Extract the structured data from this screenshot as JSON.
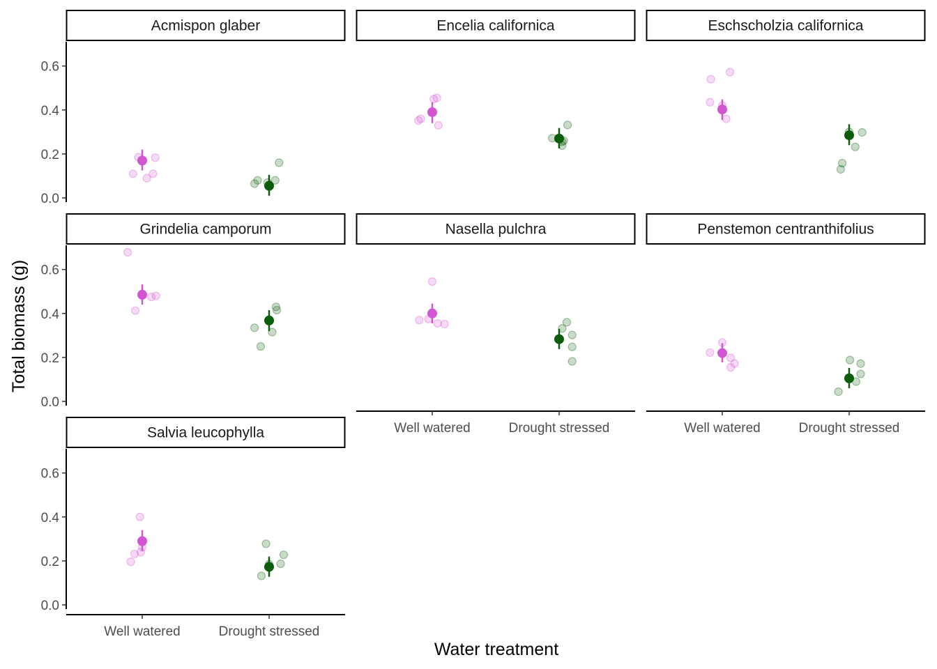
{
  "chart_data": {
    "type": "scatter",
    "xlabel": "Water treatment",
    "ylabel": "Total biomass (g)",
    "categories": [
      "Well watered",
      "Drought stressed"
    ],
    "ylim": [
      -0.03,
      0.71
    ],
    "y_ticks": [
      "0.0",
      "0.2",
      "0.4",
      "0.6"
    ],
    "y_tick_values": [
      0.0,
      0.2,
      0.4,
      0.6
    ],
    "grid": false,
    "legend": "none",
    "colors": {
      "Well watered": "#d255d2",
      "Drought stressed": "#0b5d0b"
    },
    "panels": [
      {
        "title": "Acmispon glaber",
        "groups": [
          {
            "category": "Well watered",
            "mean": 0.17,
            "error": [
              0.125,
              0.22
            ],
            "points": [
              [
                -0.12,
                0.11
              ],
              [
                -0.05,
                0.185
              ],
              [
                0.06,
                0.09
              ],
              [
                0.14,
                0.11
              ],
              [
                0.17,
                0.183
              ]
            ]
          },
          {
            "category": "Drought stressed",
            "mean": 0.055,
            "error": [
              0.01,
              0.105
            ],
            "points": [
              [
                -0.19,
                0.065
              ],
              [
                -0.15,
                0.08
              ],
              [
                -0.02,
                0.07
              ],
              [
                0.08,
                0.08
              ],
              [
                0.13,
                0.16
              ]
            ]
          }
        ]
      },
      {
        "title": "Encelia californica",
        "groups": [
          {
            "category": "Well watered",
            "mean": 0.39,
            "error": [
              0.34,
              0.435
            ],
            "points": [
              [
                -0.18,
                0.352
              ],
              [
                -0.15,
                0.36
              ],
              [
                0.02,
                0.45
              ],
              [
                0.06,
                0.455
              ],
              [
                0.08,
                0.33
              ]
            ]
          },
          {
            "category": "Drought stressed",
            "mean": 0.27,
            "error": [
              0.225,
              0.318
            ],
            "points": [
              [
                -0.09,
                0.272
              ],
              [
                0.04,
                0.255
              ],
              [
                0.04,
                0.238
              ],
              [
                0.11,
                0.332
              ],
              [
                0.06,
                0.26
              ]
            ]
          }
        ]
      },
      {
        "title": "Eschscholzia californica",
        "groups": [
          {
            "category": "Well watered",
            "mean": 0.402,
            "error": [
              0.355,
              0.448
            ],
            "points": [
              [
                -0.16,
                0.435
              ],
              [
                -0.15,
                0.54
              ],
              [
                0.05,
                0.36
              ],
              [
                0.1,
                0.572
              ],
              [
                0.0,
                0.42
              ]
            ]
          },
          {
            "category": "Drought stressed",
            "mean": 0.285,
            "error": [
              0.24,
              0.335
            ],
            "points": [
              [
                -0.11,
                0.13
              ],
              [
                -0.09,
                0.158
              ],
              [
                0.08,
                0.232
              ],
              [
                0.17,
                0.298
              ],
              [
                0.0,
                0.3
              ]
            ]
          }
        ]
      },
      {
        "title": "Grindelia camporum",
        "groups": [
          {
            "category": "Well watered",
            "mean": 0.485,
            "error": [
              0.44,
              0.532
            ],
            "points": [
              [
                -0.19,
                0.678
              ],
              [
                -0.09,
                0.413
              ],
              [
                0.12,
                0.475
              ],
              [
                0.18,
                0.48
              ],
              [
                0.0,
                0.49
              ]
            ]
          },
          {
            "category": "Drought stressed",
            "mean": 0.368,
            "error": [
              0.32,
              0.415
            ],
            "points": [
              [
                -0.19,
                0.335
              ],
              [
                -0.11,
                0.25
              ],
              [
                0.04,
                0.315
              ],
              [
                0.1,
                0.415
              ],
              [
                0.09,
                0.43
              ]
            ]
          }
        ]
      },
      {
        "title": "Nasella pulchra",
        "groups": [
          {
            "category": "Well watered",
            "mean": 0.4,
            "error": [
              0.355,
              0.445
            ],
            "points": [
              [
                -0.17,
                0.37
              ],
              [
                -0.05,
                0.375
              ],
              [
                0.0,
                0.545
              ],
              [
                0.07,
                0.355
              ],
              [
                0.16,
                0.352
              ]
            ]
          },
          {
            "category": "Drought stressed",
            "mean": 0.283,
            "error": [
              0.238,
              0.33
            ],
            "points": [
              [
                0.04,
                0.332
              ],
              [
                0.1,
                0.36
              ],
              [
                0.17,
                0.302
              ],
              [
                0.17,
                0.248
              ],
              [
                0.17,
                0.182
              ]
            ]
          }
        ]
      },
      {
        "title": "Penstemon centranthifolius",
        "groups": [
          {
            "category": "Well watered",
            "mean": 0.22,
            "error": [
              0.178,
              0.265
            ],
            "points": [
              [
                -0.16,
                0.222
              ],
              [
                0.0,
                0.268
              ],
              [
                0.11,
                0.198
              ],
              [
                0.11,
                0.155
              ],
              [
                0.16,
                0.172
              ]
            ]
          },
          {
            "category": "Drought stressed",
            "mean": 0.105,
            "error": [
              0.06,
              0.152
            ],
            "points": [
              [
                -0.14,
                0.044
              ],
              [
                0.01,
                0.188
              ],
              [
                0.09,
                0.09
              ],
              [
                0.15,
                0.172
              ],
              [
                0.15,
                0.125
              ]
            ]
          }
        ]
      },
      {
        "title": "Salvia leucophylla",
        "groups": [
          {
            "category": "Well watered",
            "mean": 0.29,
            "error": [
              0.245,
              0.34
            ],
            "points": [
              [
                -0.15,
                0.196
              ],
              [
                -0.1,
                0.232
              ],
              [
                -0.03,
                0.4
              ],
              [
                -0.02,
                0.24
              ],
              [
                0.0,
                0.262
              ]
            ]
          },
          {
            "category": "Drought stressed",
            "mean": 0.173,
            "error": [
              0.128,
              0.22
            ],
            "points": [
              [
                -0.1,
                0.132
              ],
              [
                -0.04,
                0.278
              ],
              [
                0.15,
                0.187
              ],
              [
                0.19,
                0.228
              ],
              [
                0.0,
                0.185
              ]
            ]
          }
        ]
      }
    ]
  }
}
